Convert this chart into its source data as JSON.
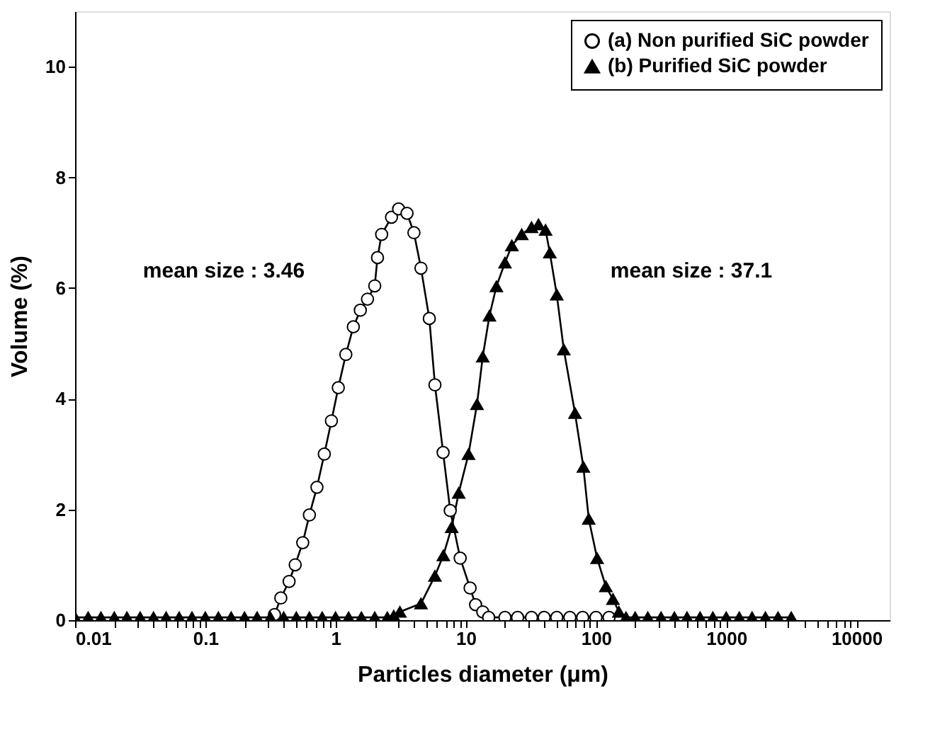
{
  "chart_data": {
    "type": "line",
    "xlabel": "Particles diameter (μm)",
    "ylabel": "Volume (%)",
    "log": "x",
    "grid": false,
    "legend": "top right",
    "line_style": "solid",
    "xlim": [
      0.01,
      18000
    ],
    "ylim": [
      0,
      11
    ],
    "yticks": [
      0,
      2,
      4,
      6,
      8,
      10
    ],
    "xticks": [
      0.01,
      {
        "value": 0.02,
        "label": null
      },
      {
        "value": 0.03,
        "label": null
      },
      {
        "value": 0.04,
        "label": null
      },
      {
        "value": 0.05,
        "label": null
      },
      {
        "value": 0.06,
        "label": null
      },
      {
        "value": 0.07,
        "label": null
      },
      {
        "value": 0.08,
        "label": null
      },
      {
        "value": 0.09,
        "label": null
      },
      0.1,
      {
        "value": 0.2,
        "label": null
      },
      {
        "value": 0.3,
        "label": null
      },
      {
        "value": 0.4,
        "label": null
      },
      {
        "value": 0.5,
        "label": null
      },
      {
        "value": 0.6,
        "label": null
      },
      {
        "value": 0.7,
        "label": null
      },
      {
        "value": 0.8,
        "label": null
      },
      {
        "value": 0.9,
        "label": null
      },
      1,
      {
        "value": 2,
        "label": null
      },
      {
        "value": 3,
        "label": null
      },
      {
        "value": 4,
        "label": null
      },
      {
        "value": 5,
        "label": null
      },
      {
        "value": 6,
        "label": null
      },
      {
        "value": 7,
        "label": null
      },
      {
        "value": 8,
        "label": null
      },
      {
        "value": 9,
        "label": null
      },
      10,
      {
        "value": 20,
        "label": null
      },
      {
        "value": 30,
        "label": null
      },
      {
        "value": 40,
        "label": null
      },
      {
        "value": 50,
        "label": null
      },
      {
        "value": 60,
        "label": null
      },
      {
        "value": 70,
        "label": null
      },
      {
        "value": 80,
        "label": null
      },
      {
        "value": 90,
        "label": null
      },
      100,
      {
        "value": 200,
        "label": null
      },
      {
        "value": 300,
        "label": null
      },
      {
        "value": 400,
        "label": null
      },
      {
        "value": 500,
        "label": null
      },
      {
        "value": 600,
        "label": null
      },
      {
        "value": 700,
        "label": null
      },
      {
        "value": 800,
        "label": null
      },
      {
        "value": 900,
        "label": null
      },
      1000,
      {
        "value": 2000,
        "label": null
      },
      {
        "value": 3000,
        "label": null
      },
      {
        "value": 4000,
        "label": null
      },
      {
        "value": 5000,
        "label": null
      },
      {
        "value": 6000,
        "label": null
      },
      {
        "value": 7000,
        "label": null
      },
      {
        "value": 8000,
        "label": null
      },
      {
        "value": 9000,
        "label": null
      },
      10000
    ],
    "annotations": [
      "mean size : 3.46",
      "mean size : 37.1"
    ],
    "series": [
      {
        "name": "(a) Non purified SiC powder",
        "color": "#000000",
        "marker": "circle",
        "x": [
          0.34,
          0.38,
          0.44,
          0.49,
          0.56,
          0.63,
          0.72,
          0.82,
          0.93,
          1.05,
          1.2,
          1.37,
          1.55,
          1.76,
          2.0,
          2.1,
          2.26,
          2.69,
          3.05,
          3.54,
          4.0,
          4.53,
          5.25,
          5.8,
          6.7,
          7.6,
          9.06,
          10.8,
          11.9,
          13.5,
          15,
          20,
          25,
          32,
          40,
          50,
          63,
          79,
          100,
          126
        ],
        "values": [
          0.1,
          0.4,
          0.7,
          1.0,
          1.4,
          1.9,
          2.4,
          3.0,
          3.6,
          4.2,
          4.8,
          5.3,
          5.6,
          5.8,
          6.04,
          6.55,
          6.97,
          7.28,
          7.43,
          7.35,
          7.0,
          6.36,
          5.45,
          4.25,
          3.03,
          1.98,
          1.12,
          0.58,
          0.28,
          0.15,
          0.05,
          0.05,
          0.05,
          0.05,
          0.05,
          0.05,
          0.05,
          0.05,
          0.05,
          0.05
        ]
      },
      {
        "name": "(b) Purified SiC powder",
        "color": "#000000",
        "marker": "triangle",
        "x": [
          0.01,
          0.0126,
          0.0158,
          0.02,
          0.025,
          0.0316,
          0.04,
          0.05,
          0.063,
          0.079,
          0.1,
          0.126,
          0.158,
          0.2,
          0.25,
          0.316,
          0.4,
          0.5,
          0.63,
          0.79,
          1,
          1.26,
          1.58,
          2,
          2.5,
          2.8,
          3.12,
          4.53,
          5.8,
          6.73,
          7.8,
          8.83,
          10.5,
          12.2,
          13.5,
          15.2,
          17.2,
          20.0,
          22.6,
          26.9,
          32,
          36.2,
          41,
          44.2,
          50,
          56.6,
          69,
          80,
          88,
          102,
          119,
          135,
          150,
          170,
          200,
          250,
          316,
          400,
          500,
          630,
          790,
          1000,
          1260,
          1580,
          2000,
          2500,
          3160
        ],
        "values": [
          0.05,
          0.05,
          0.05,
          0.05,
          0.05,
          0.05,
          0.05,
          0.05,
          0.05,
          0.05,
          0.05,
          0.05,
          0.05,
          0.05,
          0.05,
          0.05,
          0.05,
          0.05,
          0.05,
          0.05,
          0.05,
          0.05,
          0.05,
          0.05,
          0.05,
          0.08,
          0.15,
          0.3,
          0.8,
          1.17,
          1.68,
          2.3,
          3.0,
          3.9,
          4.76,
          5.5,
          6.03,
          6.46,
          6.77,
          6.97,
          7.1,
          7.15,
          7.05,
          6.64,
          5.88,
          4.89,
          3.74,
          2.77,
          1.83,
          1.12,
          0.61,
          0.38,
          0.15,
          0.05,
          0.05,
          0.05,
          0.05,
          0.05,
          0.05,
          0.05,
          0.05,
          0.05,
          0.05,
          0.05,
          0.05,
          0.05,
          0.05
        ]
      }
    ]
  }
}
